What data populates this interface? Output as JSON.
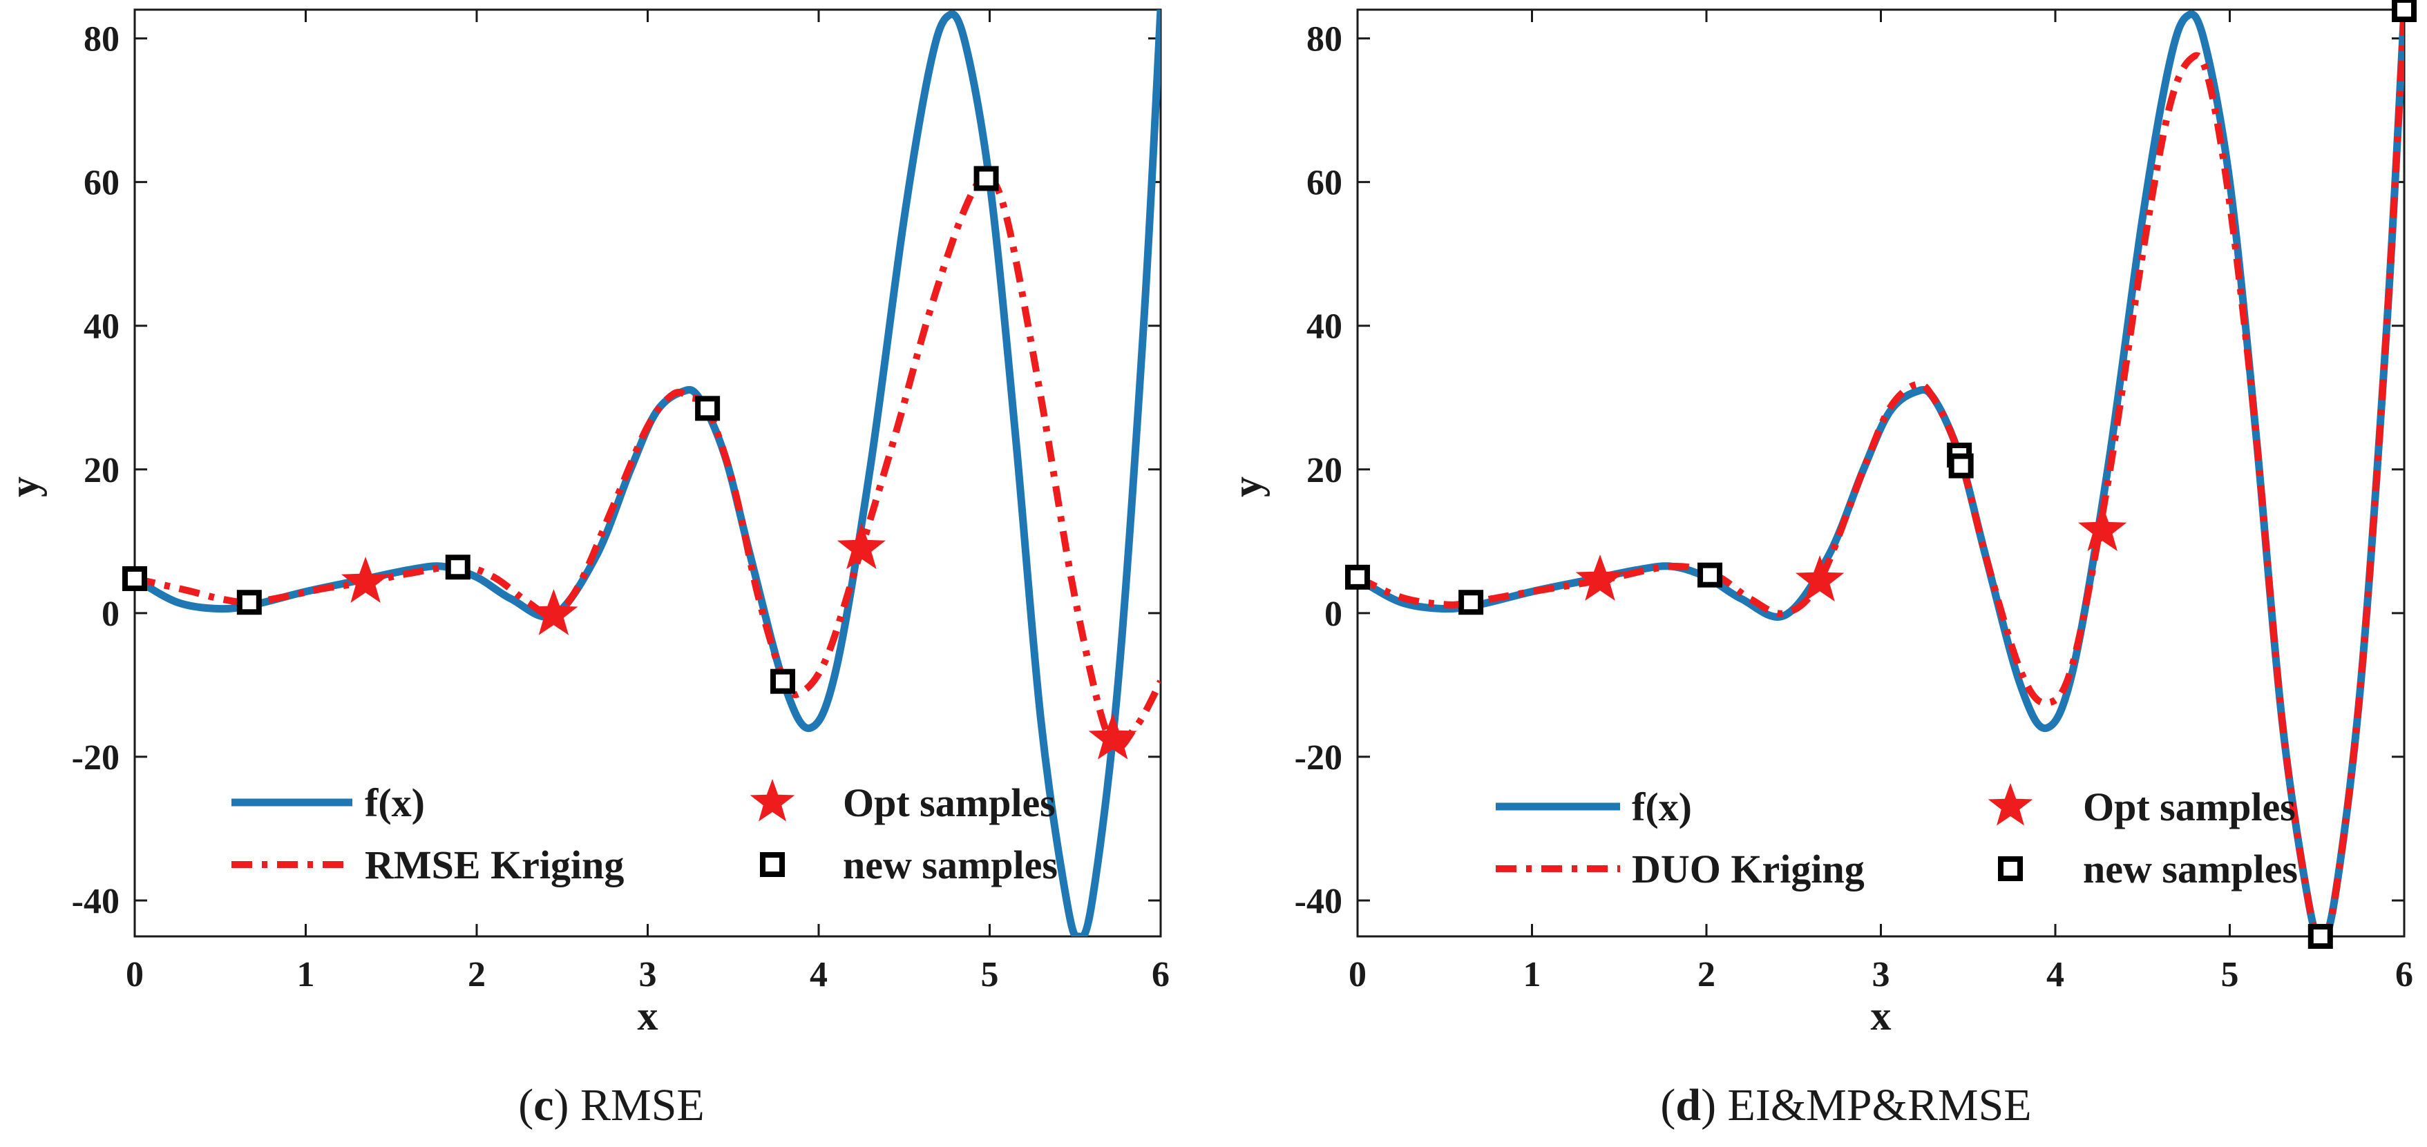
{
  "chart_data": [
    {
      "id": "c",
      "type": "line",
      "caption_letter": "c",
      "caption_text": "RMSE",
      "xlabel": "x",
      "ylabel": "y",
      "xlim": [
        0,
        6
      ],
      "ylim": [
        -45,
        84
      ],
      "xticks": [
        0,
        1,
        2,
        3,
        4,
        5,
        6
      ],
      "yticks": [
        -40,
        -20,
        0,
        20,
        40,
        60,
        80
      ],
      "series": [
        {
          "name": "f(x)",
          "style": "solid",
          "color": "#1f77b4",
          "x": [
            0,
            0.25,
            0.5,
            0.7,
            1.0,
            1.3,
            1.6,
            1.8,
            2.0,
            2.2,
            2.45,
            2.7,
            2.9,
            3.05,
            3.2,
            3.3,
            3.45,
            3.6,
            3.8,
            3.95,
            4.1,
            4.3,
            4.5,
            4.65,
            4.75,
            4.85,
            5.0,
            5.15,
            5.3,
            5.45,
            5.52,
            5.6,
            5.75,
            5.9,
            6.0
          ],
          "y": [
            4.8,
            1.5,
            0.6,
            1.2,
            3.0,
            4.5,
            6.0,
            6.5,
            5.0,
            2.0,
            -0.3,
            8.0,
            20.0,
            28.0,
            30.8,
            30.0,
            22.0,
            8.0,
            -10.0,
            -16.0,
            -8.0,
            20.0,
            55.0,
            76.0,
            83.0,
            80.0,
            60.0,
            25.0,
            -15.0,
            -40.0,
            -45.0,
            -40.0,
            -10.0,
            40.0,
            84.0
          ]
        },
        {
          "name": "RMSE Kriging",
          "style": "dashdot",
          "color": "#ee1c1c",
          "x": [
            0,
            0.3,
            0.5,
            0.67,
            0.9,
            1.1,
            1.35,
            1.6,
            1.9,
            2.1,
            2.3,
            2.45,
            2.6,
            2.8,
            3.0,
            3.15,
            3.25,
            3.35,
            3.5,
            3.65,
            3.8,
            3.9,
            4.05,
            4.25,
            4.45,
            4.65,
            4.85,
            4.98,
            5.1,
            5.3,
            5.5,
            5.7,
            5.85,
            6.0
          ],
          "y": [
            4.8,
            3.2,
            2.0,
            1.5,
            2.4,
            3.4,
            4.3,
            5.5,
            6.5,
            5.0,
            1.5,
            -0.2,
            4.0,
            15.0,
            26.0,
            30.5,
            30.0,
            28.5,
            18.0,
            2.0,
            -9.5,
            -11.0,
            -6.0,
            9.0,
            25.0,
            42.0,
            56.0,
            60.5,
            55.0,
            30.0,
            2.0,
            -17.5,
            -16.0,
            -9.5
          ]
        }
      ],
      "opt_samples": {
        "name": "Opt samples",
        "x": [
          1.35,
          2.45,
          4.25,
          5.72
        ],
        "y": [
          4.3,
          -0.2,
          9.0,
          -17.5
        ]
      },
      "new_samples": {
        "name": "new samples",
        "x": [
          0,
          0.67,
          1.89,
          3.35,
          3.79,
          4.98
        ],
        "y": [
          4.8,
          1.5,
          6.4,
          28.5,
          -9.5,
          60.5
        ]
      },
      "legend_position": "bottom-center"
    },
    {
      "id": "d",
      "type": "line",
      "caption_letter": "d",
      "caption_text": "EI&MP&RMSE",
      "xlabel": "x",
      "ylabel": "y",
      "xlim": [
        0,
        6
      ],
      "ylim": [
        -45,
        84
      ],
      "xticks": [
        0,
        1,
        2,
        3,
        4,
        5,
        6
      ],
      "yticks": [
        -40,
        -20,
        0,
        20,
        40,
        60,
        80
      ],
      "series": [
        {
          "name": "f(x)",
          "style": "solid",
          "color": "#1f77b4",
          "x": [
            0,
            0.25,
            0.5,
            0.7,
            1.0,
            1.3,
            1.6,
            1.8,
            2.0,
            2.2,
            2.45,
            2.7,
            2.9,
            3.05,
            3.2,
            3.3,
            3.45,
            3.6,
            3.8,
            3.95,
            4.1,
            4.3,
            4.5,
            4.65,
            4.75,
            4.85,
            5.0,
            5.15,
            5.3,
            5.45,
            5.52,
            5.6,
            5.75,
            5.9,
            6.0
          ],
          "y": [
            4.8,
            1.5,
            0.6,
            1.2,
            3.0,
            4.5,
            6.0,
            6.5,
            5.0,
            2.0,
            -0.3,
            8.0,
            20.0,
            28.0,
            30.8,
            30.0,
            22.0,
            8.0,
            -10.0,
            -16.0,
            -8.0,
            20.0,
            55.0,
            76.0,
            83.0,
            80.0,
            60.0,
            25.0,
            -15.0,
            -40.0,
            -45.0,
            -40.0,
            -10.0,
            40.0,
            84.0
          ]
        },
        {
          "name": "DUO Kriging",
          "style": "dashdot",
          "color": "#ee1c1c",
          "x": [
            0,
            0.25,
            0.5,
            0.65,
            1.0,
            1.4,
            1.8,
            2.05,
            2.25,
            2.45,
            2.65,
            2.9,
            3.05,
            3.2,
            3.3,
            3.45,
            3.6,
            3.8,
            3.95,
            4.1,
            4.3,
            4.5,
            4.65,
            4.77,
            4.87,
            5.0,
            5.15,
            5.3,
            5.45,
            5.52,
            5.6,
            5.75,
            5.9,
            6.0
          ],
          "y": [
            5.0,
            2.2,
            1.2,
            1.5,
            3.0,
            4.6,
            6.5,
            5.3,
            2.0,
            0.0,
            4.5,
            20.0,
            28.5,
            31.8,
            30.0,
            22.0,
            8.0,
            -8.0,
            -12.5,
            -7.0,
            18.0,
            50.0,
            70.0,
            77.0,
            75.0,
            57.0,
            25.0,
            -15.0,
            -40.0,
            -45.0,
            -40.0,
            -10.0,
            40.0,
            84.0
          ]
        }
      ],
      "opt_samples": {
        "name": "Opt samples",
        "x": [
          1.39,
          2.65,
          4.27
        ],
        "y": [
          4.6,
          4.5,
          11.5
        ]
      },
      "new_samples": {
        "name": "new samples",
        "x": [
          0,
          0.65,
          2.02,
          3.45,
          3.46,
          5.52,
          6.0
        ],
        "y": [
          5.0,
          1.5,
          5.3,
          22.0,
          20.5,
          -45.0,
          84.0
        ]
      },
      "legend_position": "bottom-center"
    }
  ]
}
